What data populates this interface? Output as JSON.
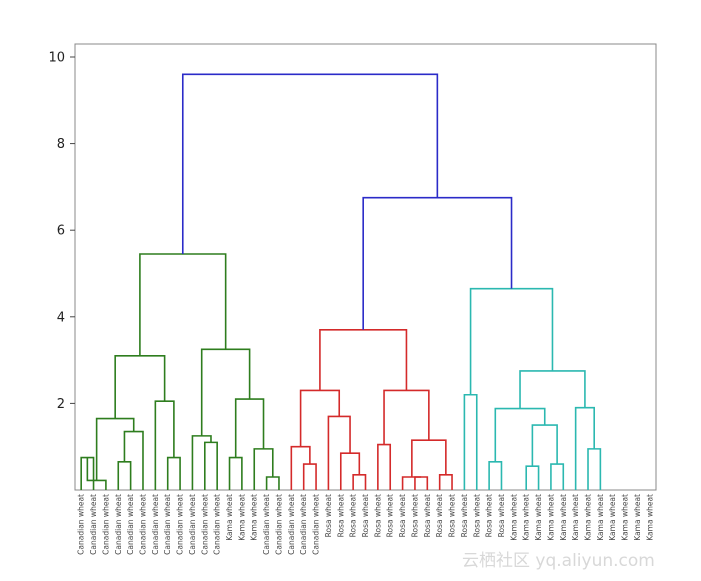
{
  "chart_data": {
    "type": "dendrogram",
    "title": "",
    "xlabel": "",
    "ylabel": "",
    "ylim": [
      0,
      10.3
    ],
    "yticks": [
      2,
      4,
      6,
      8,
      10
    ],
    "colors": {
      "blue": "#2b2bc8",
      "green": "#2e7d1e",
      "red": "#d42a2a",
      "cyan": "#2bb8b0",
      "frame": "#888888"
    },
    "leaves": [
      "Canadian wheat",
      "Canadian wheat",
      "Canadian wheat",
      "Canadian wheat",
      "Canadian wheat",
      "Canadian wheat",
      "Canadian wheat",
      "Canadian wheat",
      "Canadian wheat",
      "Canadian wheat",
      "Canadian wheat",
      "Canadian wheat",
      "Kama wheat",
      "Kama wheat",
      "Kama wheat",
      "Canadian wheat",
      "Canadian wheat",
      "Canadian wheat",
      "Canadian wheat",
      "Canadian wheat",
      "Rosa wheat",
      "Rosa wheat",
      "Rosa wheat",
      "Rosa wheat",
      "Rosa wheat",
      "Rosa wheat",
      "Rosa wheat",
      "Rosa wheat",
      "Rosa wheat",
      "Rosa wheat",
      "Rosa wheat",
      "Rosa wheat",
      "Rosa wheat",
      "Rosa wheat",
      "Rosa wheat",
      "Kama wheat",
      "Kama wheat",
      "Kama wheat",
      "Kama wheat",
      "Kama wheat",
      "Kama wheat",
      "Kama wheat",
      "Kama wheat",
      "Kama wheat",
      "Kama wheat",
      "Kama wheat",
      "Kama wheat"
    ],
    "links": [
      {
        "c": "green",
        "l": 0,
        "r": 1,
        "h": 0.75
      },
      {
        "c": "green",
        "l": "x",
        "r": 2,
        "h": 0.22
      },
      {
        "c": "green",
        "l": 3,
        "r": 4,
        "h": 1.35
      },
      {
        "c": "green",
        "l": "x",
        "r": 5,
        "h": 0.65
      },
      {
        "c": "green",
        "l": 6,
        "r": 7,
        "h": 2.05
      },
      {
        "c": "green",
        "l": "x",
        "r": 8,
        "h": 0.75
      },
      {
        "c": "green",
        "l": 9,
        "r": 10,
        "h": 1.25
      },
      {
        "c": "green",
        "l": "x",
        "r": 11,
        "h": 1.1
      },
      {
        "c": "green",
        "l": 12,
        "r": 13,
        "h": 0.75
      },
      {
        "c": "green",
        "l": 14,
        "r": 15,
        "h": 0.95
      },
      {
        "c": "green",
        "l": "x",
        "r": 16,
        "h": 0.3
      },
      {
        "c": "red",
        "l": 17,
        "r": 18,
        "h": 1.0
      },
      {
        "c": "red",
        "l": "x",
        "r": 19,
        "h": 0.6
      },
      {
        "c": "red",
        "l": 20,
        "r": 21,
        "h": 1.7
      },
      {
        "c": "red",
        "l": "x",
        "r": 22,
        "h": 0.85
      },
      {
        "c": "red",
        "l": "x",
        "r": 23,
        "h": 0.35
      },
      {
        "c": "red",
        "l": 24,
        "r": 25,
        "h": 1.05
      },
      {
        "c": "red",
        "l": 26,
        "r": 27,
        "h": 1.15
      },
      {
        "c": "red",
        "l": "x",
        "r": 28,
        "h": 0.3
      },
      {
        "c": "red",
        "l": "x",
        "r": 29,
        "h": 0.3
      },
      {
        "c": "red",
        "l": "x",
        "r": 30,
        "h": 0.35
      },
      {
        "c": "cyan",
        "l": 31,
        "r": 32,
        "h": 2.2
      },
      {
        "c": "cyan",
        "l": 33,
        "r": 34,
        "h": 0.65
      },
      {
        "c": "cyan",
        "l": 35,
        "r": 36,
        "h": 1.5
      },
      {
        "c": "cyan",
        "l": "x",
        "r": 37,
        "h": 0.55
      },
      {
        "c": "cyan",
        "l": "x",
        "r": 38,
        "h": 0.6
      },
      {
        "c": "cyan",
        "l": 39,
        "r": 40,
        "h": 1.9
      },
      {
        "c": "cyan",
        "l": "x",
        "r": 41,
        "h": 0.95
      }
    ],
    "internal": [
      {
        "c": "green",
        "h": 1.65
      },
      {
        "c": "green",
        "h": 3.1
      },
      {
        "c": "green",
        "h": 2.1
      },
      {
        "c": "green",
        "h": 3.25
      },
      {
        "c": "green",
        "h": 5.45
      },
      {
        "c": "red",
        "h": 2.3
      },
      {
        "c": "red",
        "h": 2.3
      },
      {
        "c": "red",
        "h": 3.7
      },
      {
        "c": "cyan",
        "h": 1.88
      },
      {
        "c": "cyan",
        "h": 2.75
      },
      {
        "c": "cyan",
        "h": 4.65
      },
      {
        "c": "blue",
        "h": 6.75
      },
      {
        "c": "blue",
        "h": 9.6
      }
    ]
  },
  "watermark": "云栖社区 yq.aliyun.com"
}
